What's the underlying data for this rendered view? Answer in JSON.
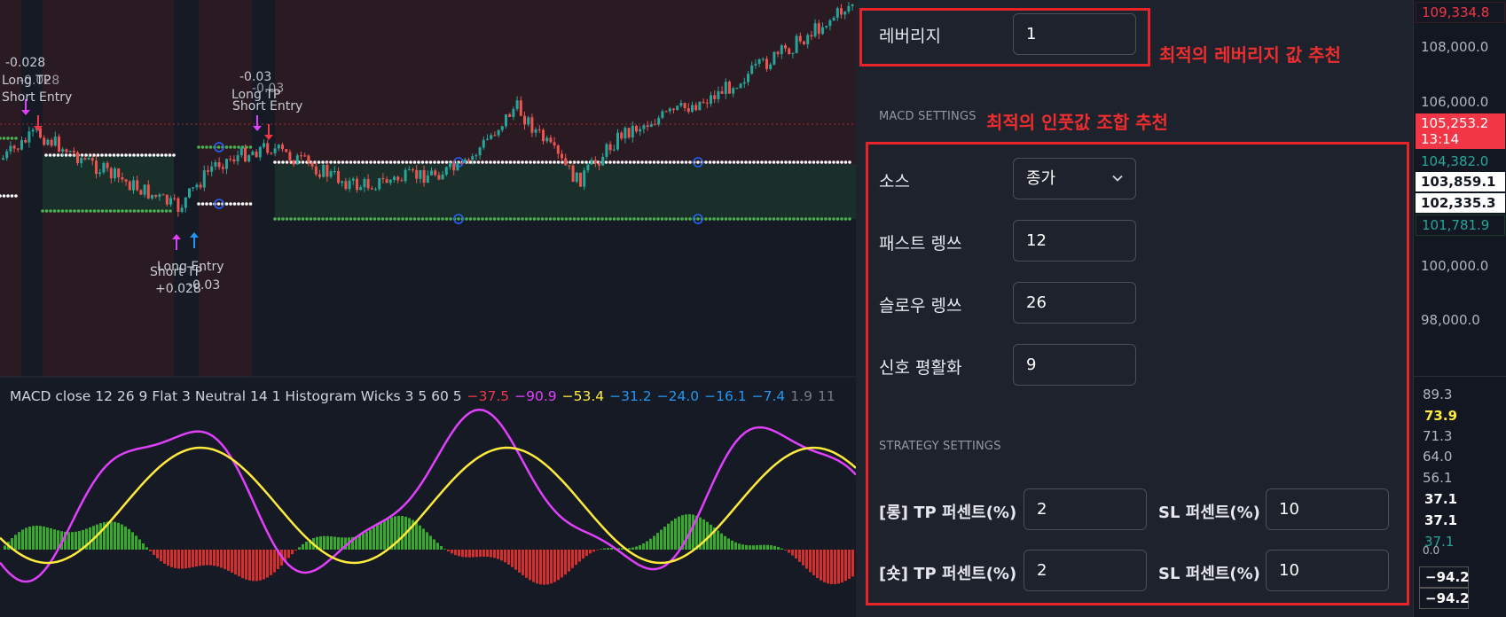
{
  "chart": {
    "labels": {
      "long_tp_left_value": "-0.028",
      "long_tp_left": "Long TP",
      "long_tp_left_overlap": "-0.028",
      "short_entry_left": "Short Entry",
      "long_tp_mid_value": "-0.03",
      "long_tp_mid_overlap": "-0.03",
      "long_tp_mid": "Long TP",
      "short_entry_mid": "Short Entry",
      "long_entry_bottom": "Long Entry",
      "short_tp_bottom": "Short TP",
      "short_tp_bottom_value": "+0.028",
      "long_entry_bottom_value": "-0.03"
    },
    "macd_legend": {
      "title": "MACD close 12 26 9 Flat 3 Neutral 14 1 Histogram Wicks 3 5 60 5",
      "values": [
        {
          "text": "−37.5",
          "color": "#f23645"
        },
        {
          "text": "−90.9",
          "color": "#e040fb"
        },
        {
          "text": "−53.4",
          "color": "#ffeb3b"
        },
        {
          "text": "−31.2",
          "color": "#2196f3"
        },
        {
          "text": "−24.0",
          "color": "#2196f3"
        },
        {
          "text": "−16.1",
          "color": "#2196f3"
        },
        {
          "text": "−7.4",
          "color": "#2196f3"
        },
        {
          "text": "1.9",
          "color": "#787b86"
        },
        {
          "text": "11",
          "color": "#787b86"
        }
      ]
    },
    "colors": {
      "up": "#26a69a",
      "down": "#ef5350",
      "macd_line": "#e040fb",
      "signal_line": "#ffeb3b",
      "hist_up": "#3aa82e",
      "hist_down": "#d32f2f"
    }
  },
  "settings": {
    "leverage": {
      "label": "레버리지",
      "value": "1"
    },
    "macd_section_title": "MACD SETTINGS",
    "source": {
      "label": "소스",
      "value": "종가"
    },
    "fast_length": {
      "label": "패스트 렝쓰",
      "value": "12"
    },
    "slow_length": {
      "label": "슬로우 렝쓰",
      "value": "26"
    },
    "signal_smoothing": {
      "label": "신호 평활화",
      "value": "9"
    },
    "strategy_section_title": "STRATEGY SETTINGS",
    "long_tp": {
      "label": "[롱] TP 퍼센트(%)",
      "value": "2"
    },
    "long_sl": {
      "label": "SL 퍼센트(%)",
      "value": "10"
    },
    "short_tp": {
      "label": "[숏] TP 퍼센트(%)",
      "value": "2"
    },
    "short_sl": {
      "label": "SL 퍼센트(%)",
      "value": "10"
    }
  },
  "annotations": {
    "leverage_note": "최적의 레버리지 값 추천",
    "input_note": "최적의 인풋값 조합 추천"
  },
  "price_axis": {
    "ticks": [
      "108,000.0",
      "106,000.0",
      "100,000.0",
      "98,000.0"
    ],
    "top_badge": "109,334.8",
    "current_price": "105,253.2",
    "countdown": "13:14",
    "badge_104382": "104,382.0",
    "badge_103859": "103,859.1",
    "badge_102335": "102,335.3",
    "badge_101781": "101,781.9",
    "macd_ticks": [
      "89.3",
      "71.3",
      "64.0",
      "56.1"
    ],
    "macd_badge_yellow": "73.9",
    "macd_badge_white_1": "37.1",
    "macd_badge_white_2": "37.1",
    "macd_badge_green": "37.1",
    "macd_zero": "0.0",
    "macd_badge_neg_1": "−94.2",
    "macd_badge_neg_2": "−94.2"
  }
}
